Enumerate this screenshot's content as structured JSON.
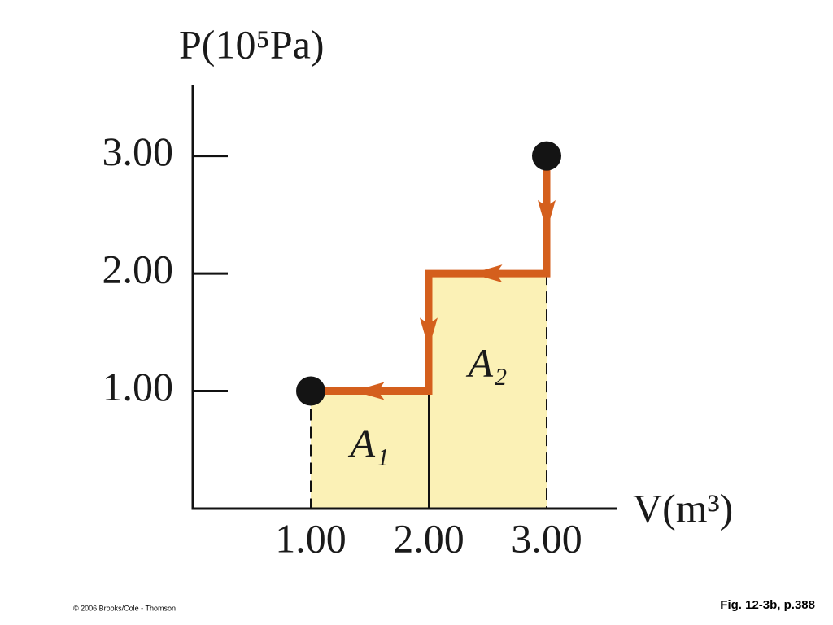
{
  "chart_data": {
    "type": "step-path",
    "ylabel": "P(10⁵Pa)",
    "xlabel": "V(m³)",
    "x": [
      3,
      3,
      2,
      2,
      1
    ],
    "values": [
      3,
      2,
      2,
      1,
      1
    ],
    "color": "#d45f1d",
    "area_color": "#fbf1b6",
    "marker_color": "#141414",
    "xlim": [
      0,
      3.6
    ],
    "ylim": [
      0,
      3.6
    ],
    "xticks": [
      {
        "value": 1,
        "label": "1.00"
      },
      {
        "value": 2,
        "label": "2.00"
      },
      {
        "value": 3,
        "label": "3.00"
      }
    ],
    "yticks": [
      {
        "value": 1,
        "label": "1.00"
      },
      {
        "value": 2,
        "label": "2.00"
      },
      {
        "value": 3,
        "label": "3.00"
      }
    ],
    "annotations": [
      "A₁",
      "A₂"
    ]
  },
  "footer": {
    "copyright": "© 2006 Brooks/Cole - Thomson",
    "caption": "Fig. 12-3b, p.388"
  }
}
